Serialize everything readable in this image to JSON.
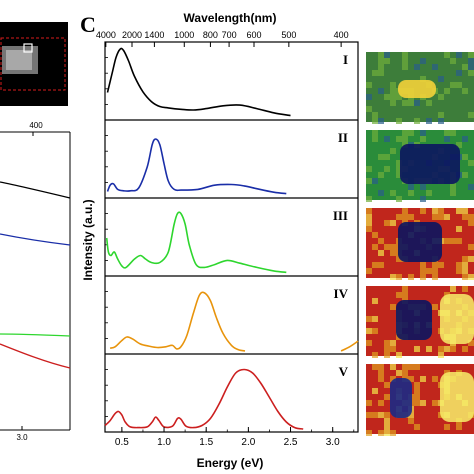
{
  "panel_letter": "C",
  "chart_data": {
    "type": "line",
    "title": "",
    "top_axis_label": "Wavelength(nm)",
    "top_tick_labels": [
      "4000",
      "2000",
      "1400",
      "1000",
      "800",
      "700",
      "600",
      "500",
      "400"
    ],
    "top_tick_values_nm": [
      4000,
      2000,
      1400,
      1000,
      800,
      700,
      600,
      500,
      400
    ],
    "xlabel": "Energy (eV)",
    "ylabel": "Intensity (a.u.)",
    "x_tick_labels": [
      "0.5",
      "1.0",
      "1.5",
      "2.0",
      "2.5",
      "3.0"
    ],
    "x_tick_values": [
      0.5,
      1.0,
      1.5,
      2.0,
      2.5,
      3.0
    ],
    "xlim": [
      0.3,
      3.3
    ],
    "ylim": [
      0,
      1
    ],
    "grid": false,
    "series": [
      {
        "name": "I",
        "color": "#000000",
        "x": [
          0.33,
          0.38,
          0.43,
          0.48,
          0.52,
          0.58,
          0.65,
          0.75,
          0.85,
          0.95,
          1.05,
          1.2,
          1.35,
          1.5,
          1.7,
          1.9,
          2.1,
          2.3,
          2.5
        ],
        "y": [
          0.35,
          0.6,
          0.85,
          0.97,
          0.95,
          0.8,
          0.58,
          0.36,
          0.22,
          0.15,
          0.13,
          0.11,
          0.1,
          0.12,
          0.16,
          0.17,
          0.12,
          0.06,
          0.02
        ]
      },
      {
        "name": "II",
        "color": "#1a2ea8",
        "x": [
          0.33,
          0.36,
          0.4,
          0.45,
          0.52,
          0.6,
          0.7,
          0.8,
          0.86,
          0.9,
          0.95,
          1.0,
          1.05,
          1.12,
          1.2,
          1.4,
          1.6,
          1.8,
          1.95,
          2.1,
          2.3,
          2.45
        ],
        "y": [
          0.05,
          0.14,
          0.16,
          0.08,
          0.06,
          0.06,
          0.1,
          0.4,
          0.72,
          0.8,
          0.72,
          0.45,
          0.2,
          0.08,
          0.07,
          0.08,
          0.14,
          0.15,
          0.13,
          0.09,
          0.04,
          0.02
        ]
      },
      {
        "name": "III",
        "color": "#2ed62e",
        "x": [
          0.32,
          0.34,
          0.37,
          0.41,
          0.45,
          0.5,
          0.55,
          0.65,
          0.72,
          0.78,
          0.85,
          0.95,
          1.05,
          1.12,
          1.16,
          1.2,
          1.25,
          1.3,
          1.38,
          1.48,
          1.6,
          1.75,
          1.9,
          2.1,
          2.3,
          2.45
        ],
        "y": [
          0.5,
          0.3,
          0.25,
          0.3,
          0.2,
          0.1,
          0.08,
          0.2,
          0.25,
          0.2,
          0.15,
          0.15,
          0.3,
          0.7,
          0.85,
          0.85,
          0.7,
          0.4,
          0.12,
          0.08,
          0.12,
          0.18,
          0.14,
          0.08,
          0.03,
          0.01
        ]
      },
      {
        "name": "IV",
        "color": "#e8940c",
        "x": [
          0.36,
          0.42,
          0.5,
          0.56,
          0.63,
          0.72,
          0.82,
          0.92,
          1.02,
          1.1,
          1.15,
          1.2,
          1.27,
          1.35,
          1.42,
          1.48,
          1.55,
          1.62,
          1.7,
          1.8,
          1.88,
          1.96
        ],
        "y": [
          0.04,
          0.06,
          0.15,
          0.2,
          0.17,
          0.1,
          0.07,
          0.05,
          0.06,
          0.08,
          0.03,
          0.06,
          0.22,
          0.55,
          0.8,
          0.83,
          0.72,
          0.48,
          0.25,
          0.08,
          0.02,
          0.0
        ]
      },
      {
        "name": "V",
        "color": "#cc1f1f",
        "x": [
          0.3,
          0.36,
          0.42,
          0.46,
          0.5,
          0.54,
          0.6,
          0.7,
          0.8,
          0.86,
          0.9,
          0.94,
          1.0,
          1.1,
          1.16,
          1.2,
          1.26,
          1.35,
          1.45,
          1.55,
          1.65,
          1.75,
          1.85,
          1.95,
          2.05,
          2.15,
          2.25,
          2.35,
          2.45,
          2.55,
          2.65
        ],
        "y": [
          0.05,
          0.12,
          0.22,
          0.25,
          0.2,
          0.1,
          0.03,
          0.02,
          0.03,
          0.1,
          0.17,
          0.12,
          0.03,
          0.04,
          0.15,
          0.14,
          0.04,
          0.02,
          0.05,
          0.15,
          0.35,
          0.6,
          0.8,
          0.85,
          0.8,
          0.65,
          0.45,
          0.25,
          0.1,
          0.02,
          0.0
        ]
      }
    ],
    "extra_segments": [
      {
        "panel": "IV",
        "color": "#e8940c",
        "x": [
          3.1,
          3.2,
          3.3
        ],
        "y": [
          0.0,
          0.06,
          0.14
        ]
      }
    ]
  },
  "left_partial": {
    "tick_top": "400",
    "tick_bottom": "3.0",
    "curve_colors": [
      "#000000",
      "#1a2ea8",
      "#2ed62e",
      "#cc1f1f"
    ]
  },
  "image_panels": {
    "colors": [
      "#2f6e3a",
      "#1f2ad0",
      "#c81a1a",
      "#d85a18",
      "#3b7d2b"
    ]
  }
}
